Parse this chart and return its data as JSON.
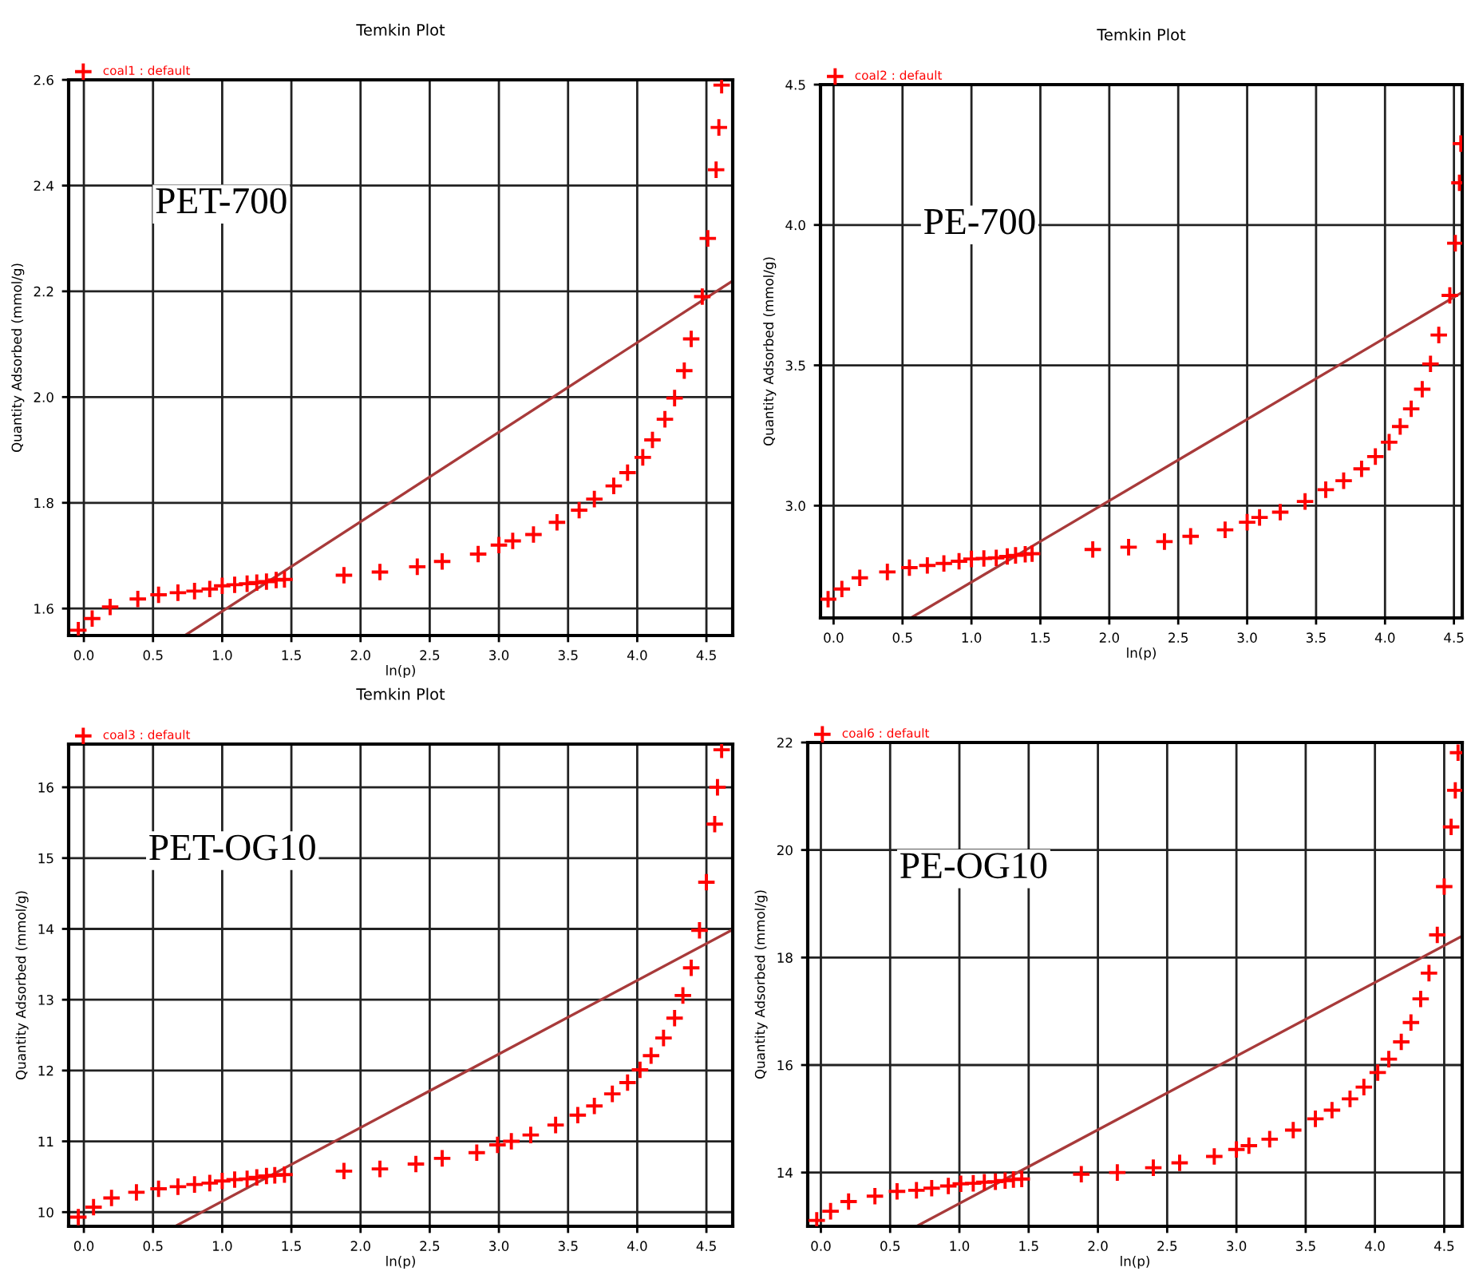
{
  "chart_data": [
    {
      "type": "scatter",
      "title": "Temkin Plot",
      "xlabel": "ln(p)",
      "ylabel": "Quantity Adsorbed (mmol/g)",
      "annotations": [
        "PET-700"
      ],
      "xlim": [
        -0.11,
        4.69
      ],
      "ylim": [
        1.549,
        2.6
      ],
      "xticks": [
        {
          "value": 0,
          "label": "0.0"
        },
        0.5,
        {
          "value": 1,
          "label": "1.0"
        },
        1.5,
        {
          "value": 2,
          "label": "2.0"
        },
        2.5,
        {
          "value": 3,
          "label": "3.0"
        },
        3.5,
        {
          "value": 4,
          "label": "4.0"
        },
        4.5
      ],
      "yticks": [
        1.6,
        1.8,
        {
          "value": 2,
          "label": "2.0"
        },
        2.2,
        2.4,
        2.6
      ],
      "grid": true,
      "legend": "top left",
      "series": [
        {
          "name": "coal1 : default",
          "color": "#ff0000",
          "marker": "cross",
          "x": [
            -0.04,
            0.06,
            0.19,
            0.39,
            0.54,
            0.68,
            0.8,
            0.91,
            1.0,
            1.09,
            1.18,
            1.25,
            1.32,
            1.39,
            1.45,
            1.88,
            2.14,
            2.41,
            2.59,
            2.85,
            3.0,
            3.1,
            3.25,
            3.42,
            3.58,
            3.69,
            3.83,
            3.93,
            4.04,
            4.11,
            4.2,
            4.27,
            4.34,
            4.39,
            4.47,
            4.51,
            4.57,
            4.59,
            4.61
          ],
          "values": [
            1.559,
            1.581,
            1.603,
            1.618,
            1.626,
            1.63,
            1.633,
            1.637,
            1.643,
            1.645,
            1.647,
            1.649,
            1.651,
            1.654,
            1.655,
            1.663,
            1.669,
            1.679,
            1.689,
            1.703,
            1.72,
            1.728,
            1.74,
            1.763,
            1.786,
            1.807,
            1.832,
            1.857,
            1.886,
            1.919,
            1.958,
            1.998,
            2.05,
            2.11,
            2.19,
            2.3,
            2.43,
            2.51,
            2.59
          ]
        },
        {
          "type": "line",
          "color": "#a83a3a",
          "x": [
            0.73,
            4.69
          ],
          "values": [
            1.549,
            2.22
          ]
        }
      ]
    },
    {
      "type": "scatter",
      "title": "Temkin Plot",
      "xlabel": "ln(p)",
      "ylabel": "Quantity Adsorbed (mmol/g)",
      "annotations": [
        "PE-700"
      ],
      "xlim": [
        -0.095,
        4.56
      ],
      "ylim": [
        2.6,
        4.5
      ],
      "xticks": [
        {
          "value": 0,
          "label": "0.0"
        },
        0.5,
        {
          "value": 1,
          "label": "1.0"
        },
        1.5,
        {
          "value": 2,
          "label": "2.0"
        },
        2.5,
        {
          "value": 3,
          "label": "3.0"
        },
        3.5,
        {
          "value": 4,
          "label": "4.0"
        },
        4.5
      ],
      "yticks": [
        {
          "value": 3,
          "label": "3.0"
        },
        3.5,
        {
          "value": 4,
          "label": "4.0"
        },
        4.5
      ],
      "grid": true,
      "legend": "top left",
      "series": [
        {
          "name": "coal2 : default",
          "color": "#ff0000",
          "marker": "cross",
          "x": [
            -0.04,
            0.06,
            0.19,
            0.39,
            0.55,
            0.68,
            0.8,
            0.91,
            1.0,
            1.09,
            1.18,
            1.26,
            1.32,
            1.39,
            1.44,
            1.88,
            2.14,
            2.4,
            2.59,
            2.84,
            3.0,
            3.09,
            3.24,
            3.42,
            3.57,
            3.7,
            3.83,
            3.93,
            4.03,
            4.11,
            4.19,
            4.27,
            4.33,
            4.39,
            4.47,
            4.51,
            4.54,
            4.55
          ],
          "values": [
            2.667,
            2.703,
            2.743,
            2.764,
            2.779,
            2.787,
            2.794,
            2.802,
            2.81,
            2.812,
            2.814,
            2.819,
            2.823,
            2.827,
            2.829,
            2.844,
            2.852,
            2.872,
            2.891,
            2.914,
            2.941,
            2.958,
            2.977,
            3.015,
            3.057,
            3.089,
            3.131,
            3.175,
            3.226,
            3.282,
            3.345,
            3.415,
            3.505,
            3.608,
            3.749,
            3.935,
            4.15,
            4.29
          ]
        },
        {
          "type": "line",
          "color": "#a83a3a",
          "x": [
            0.56,
            4.56
          ],
          "values": [
            2.6,
            3.76
          ]
        }
      ]
    },
    {
      "type": "scatter",
      "title": "Temkin Plot",
      "xlabel": "ln(p)",
      "ylabel": "Quantity Adsorbed (mmol/g)",
      "annotations": [
        "PET-OG10"
      ],
      "xlim": [
        -0.11,
        4.69
      ],
      "ylim": [
        9.8,
        16.61
      ],
      "xticks": [
        {
          "value": 0,
          "label": "0.0"
        },
        0.5,
        {
          "value": 1,
          "label": "1.0"
        },
        1.5,
        {
          "value": 2,
          "label": "2.0"
        },
        2.5,
        {
          "value": 3,
          "label": "3.0"
        },
        3.5,
        {
          "value": 4,
          "label": "4.0"
        },
        4.5
      ],
      "yticks": [
        10,
        11,
        12,
        13,
        14,
        15,
        16
      ],
      "grid": true,
      "legend": "top left",
      "series": [
        {
          "name": "coal3 : default",
          "color": "#ff0000",
          "marker": "cross",
          "x": [
            -0.04,
            0.07,
            0.2,
            0.38,
            0.54,
            0.68,
            0.8,
            0.91,
            1.0,
            1.09,
            1.18,
            1.25,
            1.32,
            1.38,
            1.45,
            1.88,
            2.14,
            2.4,
            2.59,
            2.84,
            2.99,
            3.09,
            3.23,
            3.41,
            3.57,
            3.69,
            3.82,
            3.93,
            4.02,
            4.1,
            4.19,
            4.27,
            4.33,
            4.39,
            4.45,
            4.5,
            4.56,
            4.58,
            4.61
          ],
          "values": [
            9.93,
            10.07,
            10.2,
            10.28,
            10.33,
            10.36,
            10.39,
            10.41,
            10.44,
            10.46,
            10.47,
            10.49,
            10.51,
            10.52,
            10.53,
            10.58,
            10.61,
            10.68,
            10.76,
            10.84,
            10.95,
            11.0,
            11.09,
            11.23,
            11.37,
            11.5,
            11.67,
            11.83,
            12.01,
            12.21,
            12.46,
            12.74,
            13.06,
            13.45,
            13.98,
            14.66,
            15.48,
            16.0,
            16.53
          ]
        },
        {
          "type": "line",
          "color": "#a83a3a",
          "x": [
            0.66,
            4.69
          ],
          "values": [
            9.8,
            13.99
          ]
        }
      ]
    },
    {
      "type": "scatter",
      "xlabel": "ln(p)",
      "ylabel": "Quantity Adsorbed (mmol/g)",
      "annotations": [
        "PE-OG10"
      ],
      "xlim": [
        -0.095,
        4.63
      ],
      "ylim": [
        13.0,
        22
      ],
      "xticks": [
        {
          "value": 0,
          "label": "0.0"
        },
        0.5,
        {
          "value": 1,
          "label": "1.0"
        },
        1.5,
        {
          "value": 2,
          "label": "2.0"
        },
        2.5,
        {
          "value": 3,
          "label": "3.0"
        },
        3.5,
        {
          "value": 4,
          "label": "4.0"
        },
        4.5
      ],
      "yticks": [
        14,
        16,
        18,
        20,
        22
      ],
      "grid": true,
      "legend": "top left",
      "series": [
        {
          "name": "coal6 : default",
          "color": "#ff0000",
          "marker": "cross",
          "x": [
            -0.03,
            0.07,
            0.2,
            0.39,
            0.55,
            0.69,
            0.8,
            0.92,
            1.01,
            1.1,
            1.18,
            1.26,
            1.33,
            1.39,
            1.45,
            1.88,
            2.14,
            2.4,
            2.59,
            2.84,
            3.0,
            3.09,
            3.24,
            3.41,
            3.57,
            3.69,
            3.82,
            3.92,
            4.02,
            4.1,
            4.19,
            4.26,
            4.33,
            4.39,
            4.45,
            4.5,
            4.55,
            4.58,
            4.6
          ],
          "values": [
            13.11,
            13.28,
            13.46,
            13.56,
            13.65,
            13.67,
            13.71,
            13.75,
            13.79,
            13.8,
            13.82,
            13.83,
            13.85,
            13.87,
            13.88,
            13.97,
            14.0,
            14.09,
            14.18,
            14.3,
            14.43,
            14.5,
            14.62,
            14.79,
            15.0,
            15.16,
            15.37,
            15.59,
            15.86,
            16.11,
            16.43,
            16.79,
            17.23,
            17.71,
            18.42,
            19.32,
            20.43,
            21.11,
            21.81
          ]
        },
        {
          "type": "line",
          "color": "#a83a3a",
          "x": [
            0.69,
            4.63
          ],
          "values": [
            13.0,
            18.4
          ]
        }
      ]
    }
  ]
}
